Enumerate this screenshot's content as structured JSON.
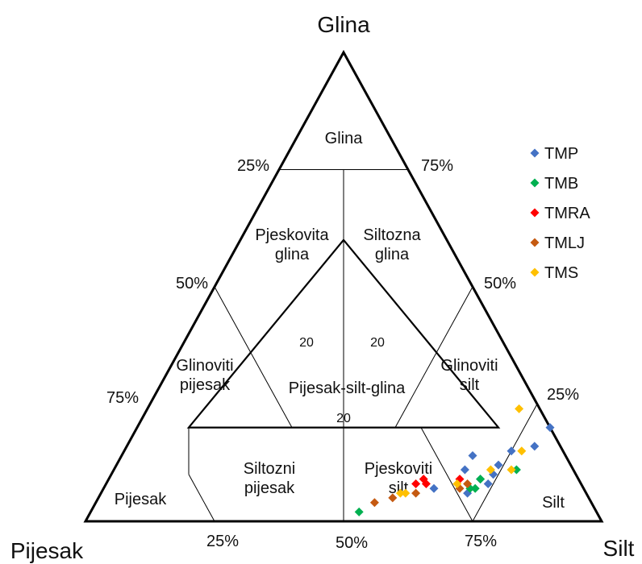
{
  "chart_data": {
    "type": "scatter",
    "subtype": "ternary",
    "vertex_labels": {
      "top": "Glina",
      "left": "Pijesak",
      "right": "Silt"
    },
    "axis_ticks": {
      "left_edge": [
        "25%",
        "50%",
        "75%"
      ],
      "right_edge": [
        "75%",
        "50%",
        "25%"
      ],
      "bottom_edge": [
        "25%",
        "50%",
        "75%"
      ]
    },
    "region_labels": [
      {
        "key": "glina",
        "lines": [
          "Glina"
        ]
      },
      {
        "key": "pjeskovita-glina",
        "lines": [
          "Pjeskovita",
          "glina"
        ]
      },
      {
        "key": "siltozna-glina",
        "lines": [
          "Siltozna",
          "glina"
        ]
      },
      {
        "key": "glinoviti-pijesak",
        "lines": [
          "Glinoviti",
          "pijesak"
        ]
      },
      {
        "key": "pijesak-silt-glina",
        "lines": [
          "Pijesak-silt-glina"
        ]
      },
      {
        "key": "glinoviti-silt",
        "lines": [
          "Glinoviti",
          "silt"
        ]
      },
      {
        "key": "pijesak",
        "lines": [
          "Pijesak"
        ]
      },
      {
        "key": "siltozni-pijesak",
        "lines": [
          "Siltozni",
          "pijesak"
        ]
      },
      {
        "key": "pjeskoviti-silt",
        "lines": [
          "Pjeskoviti",
          "silt"
        ]
      },
      {
        "key": "silt",
        "lines": [
          "Silt"
        ]
      }
    ],
    "inner_triangle_labels": [
      "20",
      "20",
      "20"
    ],
    "legend_position": "top-right",
    "series": [
      {
        "name": "TMP",
        "color": "#4472C4",
        "points": [
          [
            20,
            80
          ],
          [
            16,
            79
          ],
          [
            15,
            75
          ],
          [
            12,
            74
          ],
          [
            10,
            74
          ],
          [
            8,
            74
          ],
          [
            6,
            71
          ],
          [
            7,
            64
          ],
          [
            9,
            72
          ],
          [
            11,
            68
          ],
          [
            14,
            68
          ]
        ]
      },
      {
        "name": "TMB",
        "color": "#00B050",
        "points": [
          [
            2,
            52
          ],
          [
            11,
            78
          ],
          [
            9,
            72
          ],
          [
            7,
            71
          ],
          [
            7,
            72
          ]
        ]
      },
      {
        "name": "TMRA",
        "color": "#FF0000",
        "points": [
          [
            9,
            68
          ],
          [
            8,
            62
          ],
          [
            8,
            60
          ],
          [
            9,
            61
          ]
        ]
      },
      {
        "name": "TMLJ",
        "color": "#C55A11",
        "points": [
          [
            5,
            57
          ],
          [
            4,
            54
          ],
          [
            6,
            61
          ],
          [
            7,
            69
          ],
          [
            8,
            70
          ]
        ]
      },
      {
        "name": "TMS",
        "color": "#FFC000",
        "points": [
          [
            24,
            72
          ],
          [
            15,
            77
          ],
          [
            11,
            73
          ],
          [
            11,
            77
          ],
          [
            8,
            68
          ],
          [
            6,
            58
          ],
          [
            6,
            59
          ]
        ]
      }
    ]
  }
}
